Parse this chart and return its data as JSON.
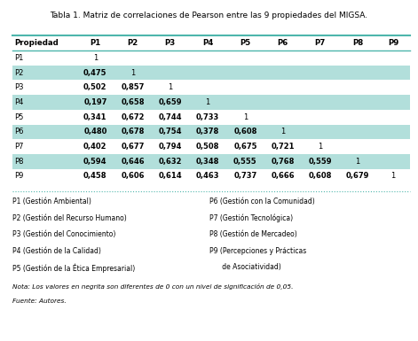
{
  "title": "Tabla 1. Matriz de correlaciones de Pearson entre las 9 propiedades del MIGSA.",
  "headers": [
    "Propiedad",
    "P1",
    "P2",
    "P3",
    "P4",
    "P5",
    "P6",
    "P7",
    "P8",
    "P9"
  ],
  "rows": [
    [
      "P1",
      "1",
      "",
      "",
      "",
      "",
      "",
      "",
      "",
      ""
    ],
    [
      "P2",
      "0,475",
      "1",
      "",
      "",
      "",
      "",
      "",
      "",
      ""
    ],
    [
      "P3",
      "0,502",
      "0,857",
      "1",
      "",
      "",
      "",
      "",
      "",
      ""
    ],
    [
      "P4",
      "0,197",
      "0,658",
      "0,659",
      "1",
      "",
      "",
      "",
      "",
      ""
    ],
    [
      "P5",
      "0,341",
      "0,672",
      "0,744",
      "0,733",
      "1",
      "",
      "",
      "",
      ""
    ],
    [
      "P6",
      "0,480",
      "0,678",
      "0,754",
      "0,378",
      "0,608",
      "1",
      "",
      "",
      ""
    ],
    [
      "P7",
      "0,402",
      "0,677",
      "0,794",
      "0,508",
      "0,675",
      "0,721",
      "1",
      "",
      ""
    ],
    [
      "P8",
      "0,594",
      "0,646",
      "0,632",
      "0,348",
      "0,555",
      "0,768",
      "0,559",
      "1",
      ""
    ],
    [
      "P9",
      "0,458",
      "0,606",
      "0,614",
      "0,463",
      "0,737",
      "0,666",
      "0,608",
      "0,679",
      "1"
    ]
  ],
  "shaded_rows": [
    1,
    3,
    5,
    7
  ],
  "shade_color": "#b2dfdb",
  "header_color": "#ffffff",
  "text_color": "#000000",
  "legend_left": [
    "P1 (Gestión Ambiental)",
    "P2 (Gestión del Recurso Humano)",
    "P3 (Gestión del Conocimiento)",
    "P4 (Gestión de la Calidad)",
    "P5 (Gestión de la Ética Empresarial)"
  ],
  "legend_right": [
    "P6 (Gestión con la Comunidad)",
    "P7 (Gestión Tecnológica)",
    "P8 (Gestión de Mercadeo)",
    "P9 (Percepciones y Prácticas",
    "      de Asociatividad)"
  ],
  "note": "Nota: Los valores en negrita son diferentes de 0 con un nivel de significación de 0,05.",
  "source": "Fuente: Autores."
}
